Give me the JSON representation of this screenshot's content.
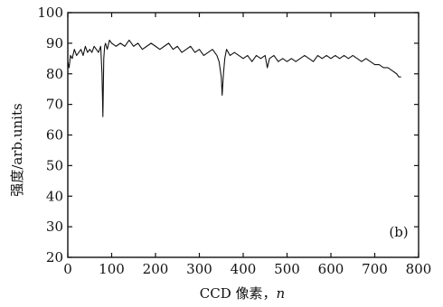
{
  "chart_data": {
    "type": "line",
    "title": "",
    "xlabel": "CCD 像素，",
    "xlabel_var": "n",
    "ylabel": "强度/arb.units",
    "panel_label": "(b)",
    "xlim": [
      0,
      800
    ],
    "ylim": [
      20,
      100
    ],
    "xticks": [
      0,
      100,
      200,
      300,
      400,
      500,
      600,
      700,
      800
    ],
    "yticks": [
      20,
      30,
      40,
      50,
      60,
      70,
      80,
      90,
      100
    ],
    "grid": false,
    "legend": "none",
    "line_color": "#111111",
    "series": [
      {
        "x": [
          0,
          3,
          6,
          10,
          15,
          20,
          25,
          30,
          35,
          40,
          45,
          50,
          55,
          60,
          65,
          70,
          75,
          78,
          80,
          82,
          84,
          86,
          90,
          95,
          100,
          110,
          120,
          130,
          140,
          150,
          160,
          170,
          180,
          190,
          200,
          210,
          220,
          230,
          240,
          250,
          260,
          270,
          280,
          290,
          300,
          310,
          320,
          330,
          340,
          345,
          350,
          352,
          355,
          358,
          362,
          370,
          380,
          390,
          400,
          410,
          420,
          430,
          440,
          450,
          455,
          460,
          470,
          480,
          490,
          500,
          510,
          520,
          530,
          540,
          550,
          560,
          570,
          580,
          590,
          600,
          610,
          620,
          630,
          640,
          650,
          660,
          670,
          680,
          690,
          700,
          710,
          720,
          730,
          740,
          750,
          755,
          760
        ],
        "y": [
          84,
          82,
          86,
          85,
          88,
          86,
          87,
          88,
          86,
          89,
          87,
          88,
          87,
          89,
          88,
          87,
          89,
          80,
          66,
          85,
          89,
          90,
          88,
          91,
          90,
          89,
          90,
          89,
          91,
          89,
          90,
          88,
          89,
          90,
          89,
          88,
          89,
          90,
          88,
          89,
          87,
          88,
          89,
          87,
          88,
          86,
          87,
          88,
          86,
          84,
          79,
          73,
          80,
          85,
          88,
          86,
          87,
          86,
          85,
          86,
          84,
          86,
          85,
          86,
          82,
          85,
          86,
          84,
          85,
          84,
          85,
          84,
          85,
          86,
          85,
          84,
          86,
          85,
          86,
          85,
          86,
          85,
          86,
          85,
          86,
          85,
          84,
          85,
          84,
          83,
          83,
          82,
          82,
          81,
          80,
          79,
          79
        ]
      }
    ]
  }
}
